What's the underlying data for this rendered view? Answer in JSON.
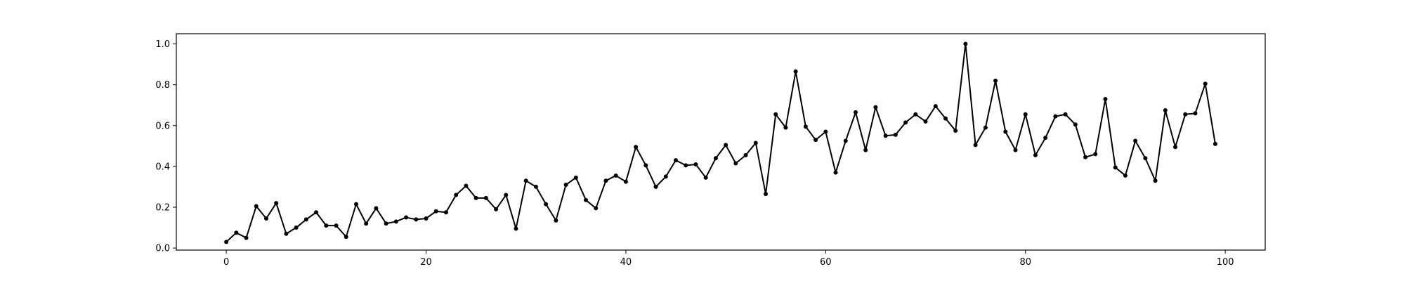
{
  "chart_data": {
    "type": "line",
    "title": "",
    "xlabel": "",
    "ylabel": "",
    "xlim": [
      -5,
      104
    ],
    "ylim": [
      -0.01,
      1.05
    ],
    "grid": false,
    "legend": "none",
    "x_ticks": [
      0,
      20,
      40,
      60,
      80,
      100
    ],
    "x_tick_labels": [
      "0",
      "20",
      "40",
      "60",
      "80",
      "100"
    ],
    "y_ticks": [
      0.0,
      0.2,
      0.4,
      0.6,
      0.8,
      1.0
    ],
    "y_tick_labels": [
      "0.0",
      "0.2",
      "0.4",
      "0.6",
      "0.8",
      "1.0"
    ],
    "line_color": "#000000",
    "marker": "circle",
    "x": [
      0,
      1,
      2,
      3,
      4,
      5,
      6,
      7,
      8,
      9,
      10,
      11,
      12,
      13,
      14,
      15,
      16,
      17,
      18,
      19,
      20,
      21,
      22,
      23,
      24,
      25,
      26,
      27,
      28,
      29,
      30,
      31,
      32,
      33,
      34,
      35,
      36,
      37,
      38,
      39,
      40,
      41,
      42,
      43,
      44,
      45,
      46,
      47,
      48,
      49,
      50,
      51,
      52,
      53,
      54,
      55,
      56,
      57,
      58,
      59,
      60,
      61,
      62,
      63,
      64,
      65,
      66,
      67,
      68,
      69,
      70,
      71,
      72,
      73,
      74,
      75,
      76,
      77,
      78,
      79,
      80,
      81,
      82,
      83,
      84,
      85,
      86,
      87,
      88,
      89,
      90,
      91,
      92,
      93,
      94,
      95,
      96,
      97,
      98,
      99
    ],
    "y": [
      0.03,
      0.075,
      0.05,
      0.205,
      0.145,
      0.22,
      0.07,
      0.1,
      0.14,
      0.175,
      0.11,
      0.11,
      0.055,
      0.215,
      0.12,
      0.195,
      0.12,
      0.13,
      0.15,
      0.14,
      0.145,
      0.18,
      0.175,
      0.26,
      0.305,
      0.245,
      0.245,
      0.19,
      0.26,
      0.095,
      0.33,
      0.3,
      0.215,
      0.135,
      0.31,
      0.345,
      0.235,
      0.195,
      0.33,
      0.355,
      0.325,
      0.495,
      0.405,
      0.3,
      0.35,
      0.43,
      0.405,
      0.41,
      0.345,
      0.44,
      0.505,
      0.415,
      0.455,
      0.515,
      0.265,
      0.655,
      0.59,
      0.865,
      0.595,
      0.53,
      0.57,
      0.37,
      0.525,
      0.665,
      0.48,
      0.69,
      0.55,
      0.555,
      0.615,
      0.655,
      0.62,
      0.695,
      0.635,
      0.575,
      1.0,
      0.505,
      0.59,
      0.82,
      0.57,
      0.48,
      0.655,
      0.455,
      0.54,
      0.645,
      0.655,
      0.605,
      0.445,
      0.46,
      0.73,
      0.395,
      0.355,
      0.525,
      0.44,
      0.33,
      0.675,
      0.495,
      0.655,
      0.66,
      0.805,
      0.51
    ]
  }
}
